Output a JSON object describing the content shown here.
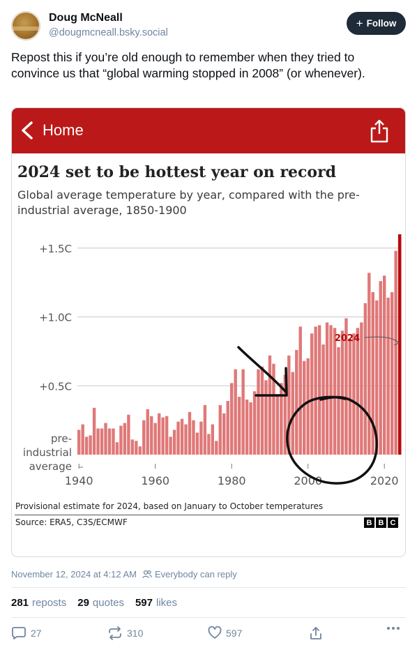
{
  "author": {
    "name": "Doug McNeall",
    "handle": "@dougmcneall.bsky.social"
  },
  "follow_button": {
    "label": "Follow"
  },
  "post": {
    "text": "Repost this if you’re old enough to remember when they tried to convince us that “global warming stopped in 2008” (or whenever)."
  },
  "embed": {
    "nav": {
      "home_label": "Home"
    },
    "footnote": "Provisional estimate for 2024, based on January to October temperatures",
    "source": "Source: ERA5, C3S/ECMWF",
    "logo_letters": [
      "B",
      "B",
      "C"
    ],
    "brand_color": "#bb1919"
  },
  "chart_data": {
    "type": "bar",
    "title": "2024 set to be hottest year on record",
    "subtitle": "Global average temperature by year, compared with the pre-industrial average, 1850-1900",
    "highlight_label": "2024",
    "yticks": [
      {
        "value": 1.5,
        "label": "+1.5C"
      },
      {
        "value": 1.0,
        "label": "+1.0C"
      },
      {
        "value": 0.5,
        "label": "+0.5C"
      }
    ],
    "baseline_label": [
      "pre-",
      "industrial",
      "average"
    ],
    "xticks": [
      1940,
      1960,
      1980,
      2000,
      2020
    ],
    "ylim": [
      0,
      1.65
    ],
    "grid": true,
    "bar_color": "#e07878",
    "highlight_color": "#b80a0a",
    "years": [
      1940,
      1941,
      1942,
      1943,
      1944,
      1945,
      1946,
      1947,
      1948,
      1949,
      1950,
      1951,
      1952,
      1953,
      1954,
      1955,
      1956,
      1957,
      1958,
      1959,
      1960,
      1961,
      1962,
      1963,
      1964,
      1965,
      1966,
      1967,
      1968,
      1969,
      1970,
      1971,
      1972,
      1973,
      1974,
      1975,
      1976,
      1977,
      1978,
      1979,
      1980,
      1981,
      1982,
      1983,
      1984,
      1985,
      1986,
      1987,
      1988,
      1989,
      1990,
      1991,
      1992,
      1993,
      1994,
      1995,
      1996,
      1997,
      1998,
      1999,
      2000,
      2001,
      2002,
      2003,
      2004,
      2005,
      2006,
      2007,
      2008,
      2009,
      2010,
      2011,
      2012,
      2013,
      2014,
      2015,
      2016,
      2017,
      2018,
      2019,
      2020,
      2021,
      2022,
      2023,
      2024
    ],
    "values": [
      0.18,
      0.22,
      0.13,
      0.14,
      0.34,
      0.19,
      0.19,
      0.23,
      0.19,
      0.19,
      0.09,
      0.21,
      0.23,
      0.29,
      0.11,
      0.1,
      0.06,
      0.25,
      0.33,
      0.28,
      0.23,
      0.3,
      0.27,
      0.28,
      0.13,
      0.18,
      0.24,
      0.26,
      0.22,
      0.31,
      0.25,
      0.16,
      0.24,
      0.36,
      0.15,
      0.22,
      0.1,
      0.36,
      0.3,
      0.39,
      0.52,
      0.62,
      0.42,
      0.62,
      0.4,
      0.38,
      0.46,
      0.62,
      0.64,
      0.54,
      0.72,
      0.66,
      0.44,
      0.52,
      0.58,
      0.72,
      0.6,
      0.76,
      0.93,
      0.68,
      0.7,
      0.88,
      0.93,
      0.94,
      0.8,
      0.96,
      0.94,
      0.92,
      0.78,
      0.9,
      0.99,
      0.84,
      0.88,
      0.92,
      0.96,
      1.1,
      1.32,
      1.18,
      1.12,
      1.26,
      1.3,
      1.14,
      1.18,
      1.48,
      1.6
    ]
  },
  "meta_row": {
    "timestamp": "November 12, 2024 at 4:12 AM",
    "reply_setting": "Everybody can reply"
  },
  "stats": [
    {
      "count": "281",
      "label": "reposts"
    },
    {
      "count": "29",
      "label": "quotes"
    },
    {
      "count": "597",
      "label": "likes"
    }
  ],
  "actions": {
    "reply_count": "27",
    "repost_count": "310",
    "like_count": "597"
  },
  "icons": [
    "plus-icon",
    "chevron-left-icon",
    "share-icon",
    "people-icon",
    "reply-icon",
    "repost-icon",
    "heart-icon",
    "share-icon",
    "more-icon"
  ]
}
